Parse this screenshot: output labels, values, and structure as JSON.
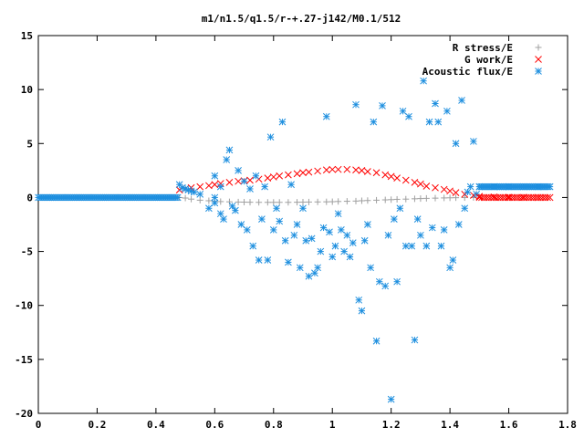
{
  "chart_data": {
    "type": "scatter",
    "title": "m1/n1.5/q1.5/r-+.27-j142/M0.1/512",
    "xlabel": "",
    "ylabel": "",
    "xlim": [
      0,
      1.8
    ],
    "ylim": [
      -20,
      15
    ],
    "x_ticks": [
      "0",
      "0.2",
      "0.4",
      "0.6",
      "0.8",
      "1",
      "1.2",
      "1.4",
      "1.6",
      "1.8"
    ],
    "y_ticks": [
      "15",
      "10",
      "5",
      "0",
      "-5",
      "-10",
      "-15",
      "-20"
    ],
    "legend_position": "top-right",
    "grid": false,
    "series": [
      {
        "name": "R stress/E",
        "marker": "plus",
        "color": "#a0a0a0",
        "points": [
          [
            0.48,
            0.0
          ],
          [
            0.5,
            -0.05
          ],
          [
            0.52,
            -0.15
          ],
          [
            0.55,
            -0.25
          ],
          [
            0.58,
            -0.3
          ],
          [
            0.6,
            -0.35
          ],
          [
            0.62,
            -0.38
          ],
          [
            0.65,
            -0.4
          ],
          [
            0.68,
            -0.42
          ],
          [
            0.7,
            -0.43
          ],
          [
            0.72,
            -0.44
          ],
          [
            0.75,
            -0.45
          ],
          [
            0.78,
            -0.45
          ],
          [
            0.8,
            -0.45
          ],
          [
            0.82,
            -0.45
          ],
          [
            0.85,
            -0.45
          ],
          [
            0.88,
            -0.44
          ],
          [
            0.9,
            -0.43
          ],
          [
            0.92,
            -0.42
          ],
          [
            0.95,
            -0.41
          ],
          [
            0.98,
            -0.4
          ],
          [
            1.0,
            -0.39
          ],
          [
            1.02,
            -0.37
          ],
          [
            1.05,
            -0.35
          ],
          [
            1.08,
            -0.33
          ],
          [
            1.1,
            -0.3
          ],
          [
            1.12,
            -0.28
          ],
          [
            1.15,
            -0.25
          ],
          [
            1.18,
            -0.22
          ],
          [
            1.2,
            -0.2
          ],
          [
            1.22,
            -0.17
          ],
          [
            1.25,
            -0.15
          ],
          [
            1.28,
            -0.12
          ],
          [
            1.3,
            -0.1
          ],
          [
            1.32,
            -0.08
          ],
          [
            1.35,
            -0.06
          ],
          [
            1.38,
            -0.04
          ],
          [
            1.4,
            -0.03
          ],
          [
            1.42,
            -0.02
          ],
          [
            1.45,
            -0.01
          ],
          [
            1.48,
            0.0
          ]
        ]
      },
      {
        "name": "G work/E",
        "marker": "cross",
        "color": "#ff0000",
        "points": [
          [
            0.48,
            0.7
          ],
          [
            0.5,
            0.8
          ],
          [
            0.52,
            0.9
          ],
          [
            0.55,
            1.0
          ],
          [
            0.58,
            1.1
          ],
          [
            0.6,
            1.2
          ],
          [
            0.62,
            1.3
          ],
          [
            0.65,
            1.4
          ],
          [
            0.68,
            1.5
          ],
          [
            0.7,
            1.55
          ],
          [
            0.72,
            1.6
          ],
          [
            0.75,
            1.7
          ],
          [
            0.78,
            1.8
          ],
          [
            0.8,
            1.9
          ],
          [
            0.82,
            2.0
          ],
          [
            0.85,
            2.1
          ],
          [
            0.88,
            2.2
          ],
          [
            0.9,
            2.3
          ],
          [
            0.92,
            2.35
          ],
          [
            0.95,
            2.45
          ],
          [
            0.98,
            2.55
          ],
          [
            1.0,
            2.6
          ],
          [
            1.02,
            2.6
          ],
          [
            1.05,
            2.6
          ],
          [
            1.08,
            2.55
          ],
          [
            1.1,
            2.5
          ],
          [
            1.12,
            2.4
          ],
          [
            1.15,
            2.3
          ],
          [
            1.18,
            2.1
          ],
          [
            1.2,
            1.95
          ],
          [
            1.22,
            1.8
          ],
          [
            1.25,
            1.6
          ],
          [
            1.28,
            1.4
          ],
          [
            1.3,
            1.25
          ],
          [
            1.32,
            1.05
          ],
          [
            1.35,
            0.9
          ],
          [
            1.38,
            0.75
          ],
          [
            1.4,
            0.6
          ],
          [
            1.42,
            0.45
          ],
          [
            1.45,
            0.3
          ],
          [
            1.48,
            0.2
          ],
          [
            1.5,
            0.1
          ],
          [
            1.55,
            0.05
          ],
          [
            1.6,
            0.02
          ],
          [
            1.65,
            0.01
          ],
          [
            1.7,
            0.0
          ],
          [
            1.74,
            0.0
          ]
        ]
      },
      {
        "name": "Acoustic flux/E",
        "marker": "star",
        "color": "#1e8fdf",
        "points": [
          [
            0.48,
            1.2
          ],
          [
            0.49,
            0.9
          ],
          [
            0.5,
            0.8
          ],
          [
            0.51,
            0.7
          ],
          [
            0.52,
            0.6
          ],
          [
            0.53,
            0.5
          ],
          [
            0.55,
            0.3
          ],
          [
            0.6,
            0.0
          ],
          [
            0.58,
            -1.0
          ],
          [
            0.6,
            -0.5
          ],
          [
            0.62,
            -1.5
          ],
          [
            0.6,
            2.0
          ],
          [
            0.62,
            1.0
          ],
          [
            0.63,
            -2.0
          ],
          [
            0.64,
            3.5
          ],
          [
            0.65,
            4.4
          ],
          [
            0.66,
            -0.8
          ],
          [
            0.67,
            -1.2
          ],
          [
            0.68,
            2.5
          ],
          [
            0.69,
            -2.5
          ],
          [
            0.7,
            1.5
          ],
          [
            0.71,
            -3.0
          ],
          [
            0.72,
            0.8
          ],
          [
            0.73,
            -4.5
          ],
          [
            0.74,
            2.0
          ],
          [
            0.75,
            -5.8
          ],
          [
            0.76,
            -2.0
          ],
          [
            0.77,
            1.0
          ],
          [
            0.78,
            -5.8
          ],
          [
            0.79,
            5.6
          ],
          [
            0.8,
            -3.0
          ],
          [
            0.81,
            -1.0
          ],
          [
            0.82,
            -2.2
          ],
          [
            0.83,
            7.0
          ],
          [
            0.84,
            -4.0
          ],
          [
            0.85,
            -6.0
          ],
          [
            0.86,
            1.2
          ],
          [
            0.87,
            -3.5
          ],
          [
            0.88,
            -2.5
          ],
          [
            0.89,
            -6.5
          ],
          [
            0.9,
            -1.0
          ],
          [
            0.91,
            -4.0
          ],
          [
            0.92,
            -7.3
          ],
          [
            0.93,
            -3.8
          ],
          [
            0.94,
            -7.0
          ],
          [
            0.95,
            -6.5
          ],
          [
            0.96,
            -5.0
          ],
          [
            0.97,
            -2.8
          ],
          [
            0.98,
            7.5
          ],
          [
            0.99,
            -3.2
          ],
          [
            1.0,
            -5.5
          ],
          [
            1.01,
            -4.5
          ],
          [
            1.02,
            -1.5
          ],
          [
            1.03,
            -3.0
          ],
          [
            1.04,
            -5.0
          ],
          [
            1.05,
            -3.5
          ],
          [
            1.06,
            -5.5
          ],
          [
            1.07,
            -4.2
          ],
          [
            1.08,
            8.6
          ],
          [
            1.09,
            -9.5
          ],
          [
            1.1,
            -10.5
          ],
          [
            1.11,
            -4.0
          ],
          [
            1.12,
            -2.5
          ],
          [
            1.13,
            -6.5
          ],
          [
            1.14,
            7.0
          ],
          [
            1.15,
            -13.3
          ],
          [
            1.16,
            -7.8
          ],
          [
            1.17,
            8.5
          ],
          [
            1.18,
            -8.2
          ],
          [
            1.19,
            -3.5
          ],
          [
            1.2,
            -18.7
          ],
          [
            1.21,
            -2.0
          ],
          [
            1.22,
            -7.8
          ],
          [
            1.23,
            -1.0
          ],
          [
            1.24,
            8.0
          ],
          [
            1.25,
            -4.5
          ],
          [
            1.26,
            7.5
          ],
          [
            1.27,
            -4.5
          ],
          [
            1.28,
            -13.2
          ],
          [
            1.29,
            -2.0
          ],
          [
            1.3,
            -3.5
          ],
          [
            1.31,
            10.8
          ],
          [
            1.32,
            -4.5
          ],
          [
            1.33,
            7.0
          ],
          [
            1.34,
            -2.8
          ],
          [
            1.35,
            8.7
          ],
          [
            1.36,
            7.0
          ],
          [
            1.37,
            -4.5
          ],
          [
            1.38,
            -3.0
          ],
          [
            1.39,
            8.0
          ],
          [
            1.4,
            -6.5
          ],
          [
            1.41,
            -5.8
          ],
          [
            1.42,
            5.0
          ],
          [
            1.43,
            -2.5
          ],
          [
            1.44,
            9.0
          ],
          [
            1.45,
            -1.0
          ],
          [
            1.46,
            0.5
          ],
          [
            1.47,
            1.0
          ],
          [
            1.48,
            5.2
          ],
          [
            1.49,
            0.3
          ],
          [
            1.5,
            1.0
          ],
          [
            1.55,
            1.0
          ],
          [
            1.6,
            1.0
          ],
          [
            1.65,
            1.0
          ],
          [
            1.7,
            1.0
          ],
          [
            1.74,
            1.0
          ]
        ]
      }
    ]
  }
}
